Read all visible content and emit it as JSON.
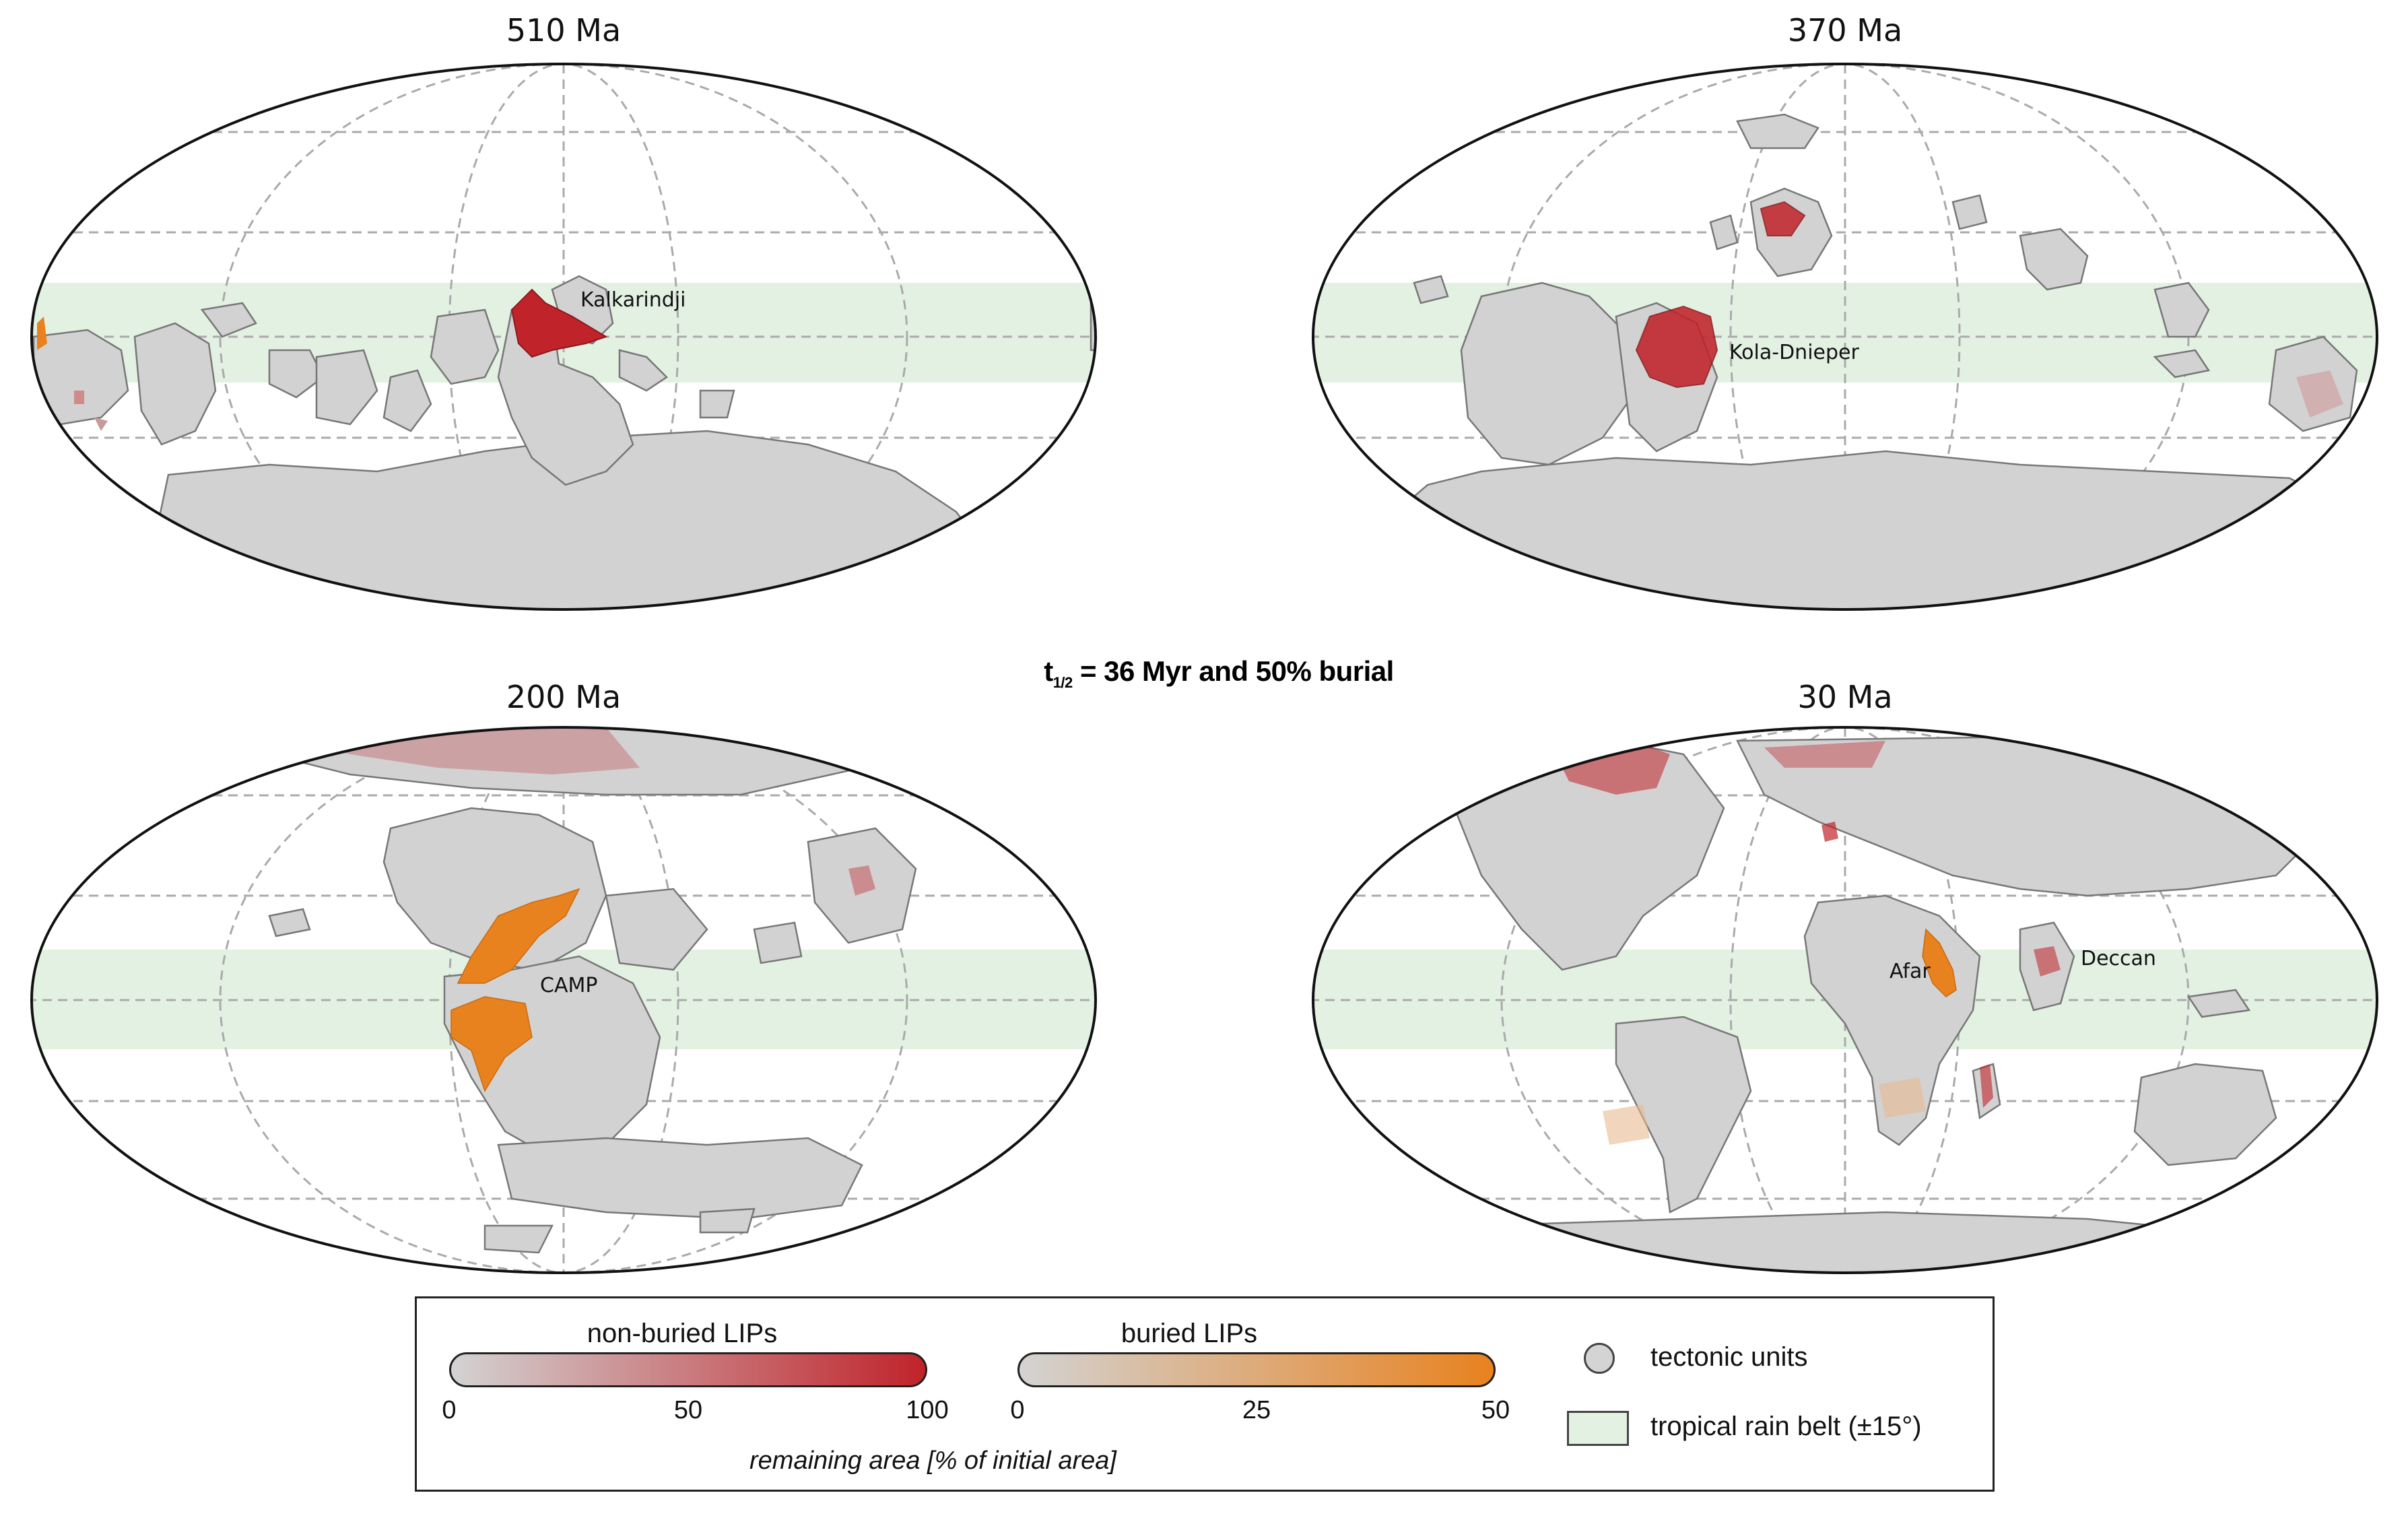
{
  "figure_title": {
    "prefix": "t",
    "subscript": "1/2",
    "suffix": " = 36 Myr and 50% burial"
  },
  "panels": [
    {
      "title": "510 Ma",
      "labels": [
        "Kalkarindji"
      ]
    },
    {
      "title": "370 Ma",
      "labels": [
        "Kola-Dnieper"
      ]
    },
    {
      "title": "200 Ma",
      "labels": [
        "CAMP"
      ]
    },
    {
      "title": "30 Ma",
      "labels": [
        "Afar",
        "Deccan"
      ]
    }
  ],
  "legend": {
    "nonburied": {
      "title": "non-buried LIPs",
      "ticks": [
        "0",
        "50",
        "100"
      ],
      "range": [
        0,
        100
      ],
      "color_from": "#d3d3d3",
      "color_to": "#c0232a"
    },
    "buried": {
      "title": "buried LIPs",
      "ticks": [
        "0",
        "25",
        "50"
      ],
      "range": [
        0,
        50
      ],
      "color_from": "#d3d3d3",
      "color_to": "#e8821f"
    },
    "axis_label": "remaining area [% of initial area]",
    "symbols": [
      {
        "label": "tectonic units",
        "icon": "circle-icon",
        "color": "#d4d4d4"
      },
      {
        "label": "tropical rain belt (±15°)",
        "icon": "rectangle-icon",
        "color": "#e3f1e3"
      }
    ]
  },
  "colors": {
    "land": "#d2d2d2",
    "land_edge": "#777777",
    "tropics": "#e3f1e3",
    "grid": "#aaaaaa",
    "nonburied_lip": "#c0232a",
    "buried_lip": "#e8821f"
  }
}
